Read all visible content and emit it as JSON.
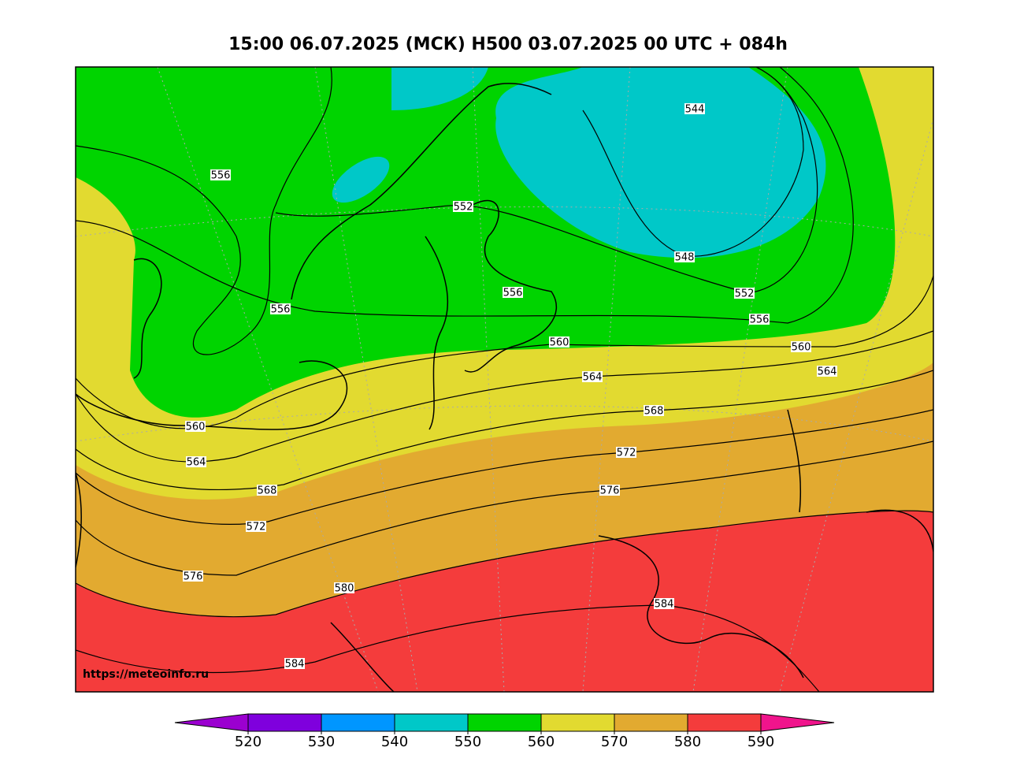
{
  "title": "15:00 06.07.2025 (МСК) H500  03.07.2025 00 UTC + 084h",
  "watermark": "https://meteoinfo.ru",
  "contour_labels": [
    "556",
    "552",
    "544",
    "548",
    "552",
    "556",
    "556",
    "556",
    "560",
    "560",
    "564",
    "564",
    "568",
    "560",
    "564",
    "572",
    "568",
    "576",
    "572",
    "576",
    "580",
    "584",
    "584"
  ],
  "colorbar": {
    "ticks": [
      520,
      530,
      540,
      550,
      560,
      570,
      580,
      590
    ],
    "colors": [
      "#9b00d0",
      "#7f00dd",
      "#0096ff",
      "#00c8c8",
      "#00d400",
      "#e2da30",
      "#e2aa30",
      "#f43c3c",
      "#f0148c"
    ]
  }
}
